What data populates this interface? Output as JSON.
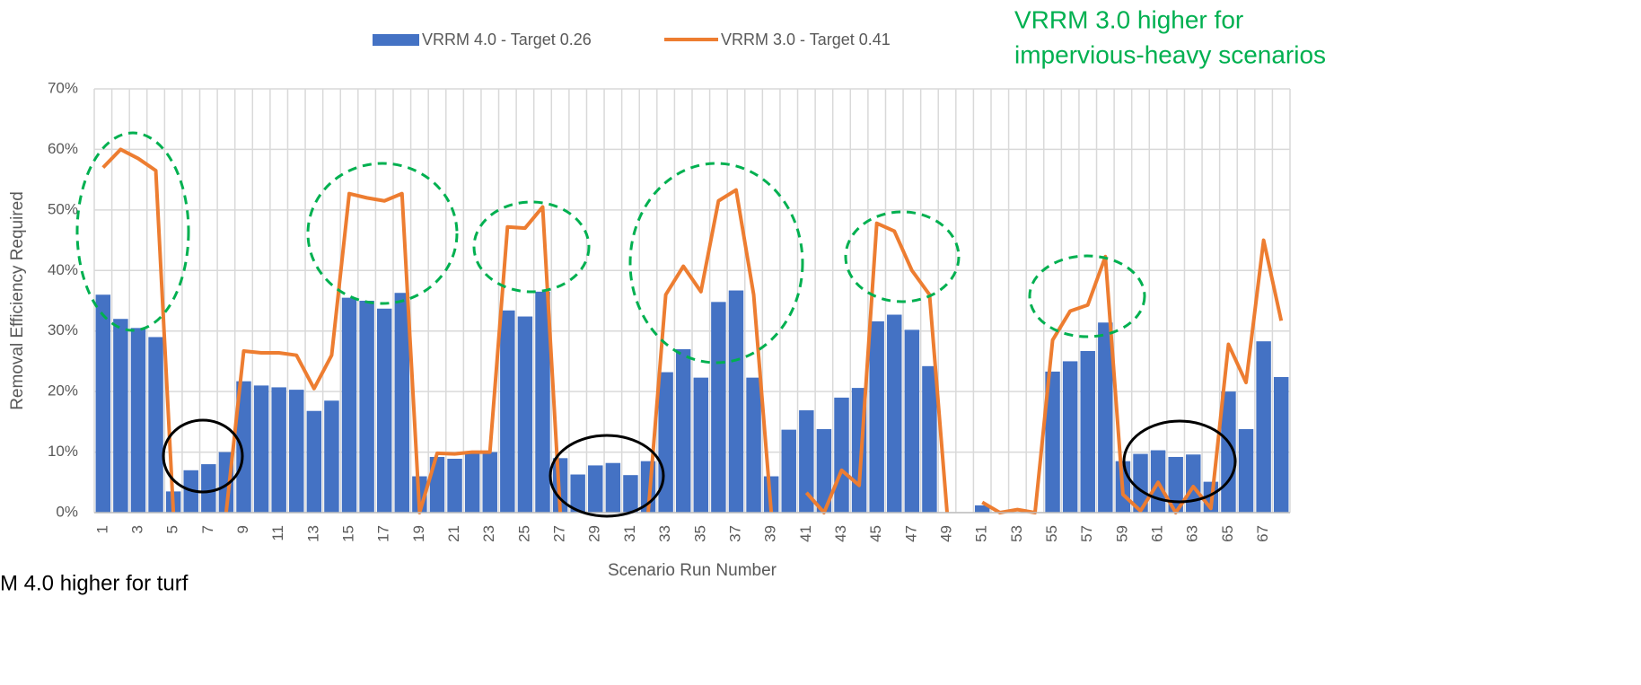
{
  "chart_data": {
    "type": "bar_line",
    "categories": [
      "1",
      null,
      "3",
      null,
      "5",
      null,
      "7",
      null,
      "9",
      null,
      "11",
      null,
      "13",
      null,
      "15",
      null,
      "17",
      null,
      "19",
      null,
      "21",
      null,
      "23",
      null,
      "25",
      null,
      "27",
      null,
      "29",
      null,
      "31",
      null,
      "33",
      null,
      "35",
      null,
      "37",
      null,
      "39",
      null,
      "41",
      null,
      "43",
      null,
      "45",
      null,
      "47",
      null,
      "49",
      null,
      "51",
      null,
      "53",
      null,
      "55",
      null,
      "57",
      null,
      "59",
      null,
      "61",
      null,
      "63",
      null,
      "65",
      null,
      "67",
      null
    ],
    "series": [
      {
        "name": "VRRM 4.0 - Target 0.26",
        "type": "bar",
        "color": "#4472c4",
        "values": [
          36,
          32,
          30.5,
          29,
          3.5,
          7,
          8,
          10,
          21.7,
          21,
          20.7,
          20.3,
          16.8,
          18.5,
          35.5,
          35,
          33.7,
          36.3,
          6,
          9.2,
          8.9,
          9.8,
          10,
          33.4,
          32.4,
          36.5,
          9,
          6.3,
          7.8,
          8.2,
          6.2,
          8.5,
          23.2,
          27,
          22.3,
          34.8,
          36.7,
          22.3,
          6,
          13.7,
          16.9,
          13.8,
          19,
          20.6,
          31.6,
          32.7,
          30.2,
          24.2,
          0,
          0,
          1.2,
          0,
          0,
          0,
          23.3,
          25,
          26.7,
          31.4,
          8.5,
          9.7,
          10.3,
          9.2,
          9.6,
          5.1,
          20,
          13.8,
          28.3,
          22.4
        ]
      },
      {
        "name": "VRRM 3.0 - Target 0.41",
        "type": "line",
        "color": "#ed7d31",
        "values": [
          57,
          60,
          58.5,
          56.5,
          0,
          null,
          null,
          0,
          26.7,
          26.4,
          26.4,
          26,
          20.5,
          26,
          52.7,
          52,
          51.5,
          52.7,
          0,
          9.8,
          9.7,
          10,
          10,
          47.2,
          47,
          50.5,
          0,
          null,
          null,
          null,
          null,
          0,
          36,
          40.7,
          36.5,
          51.5,
          53.3,
          36,
          0,
          null,
          3.3,
          0,
          7,
          4.5,
          47.8,
          46.5,
          40,
          36,
          0,
          null,
          1.7,
          0,
          0.5,
          0,
          28.5,
          33.3,
          34.3,
          42.3,
          3,
          0.3,
          5,
          0,
          4.3,
          0.7,
          27.8,
          21.5,
          45,
          31.7
        ]
      }
    ],
    "ylim": [
      0,
      70
    ],
    "yticks": [
      {
        "value": 0,
        "label": "0%"
      },
      {
        "value": 10,
        "label": "10%"
      },
      {
        "value": 20,
        "label": "20%"
      },
      {
        "value": 30,
        "label": "30%"
      },
      {
        "value": 40,
        "label": "40%"
      },
      {
        "value": 50,
        "label": "50%"
      },
      {
        "value": 60,
        "label": "60%"
      },
      {
        "value": 70,
        "label": "70%"
      }
    ],
    "grid": true,
    "y_label": "Removal Efficiency Required",
    "x_label": "Scenario Run Number",
    "annotations": [
      "VRRM 3.0 higher for",
      "impervious-heavy scenarios",
      "M 4.0 higher for turf"
    ]
  }
}
